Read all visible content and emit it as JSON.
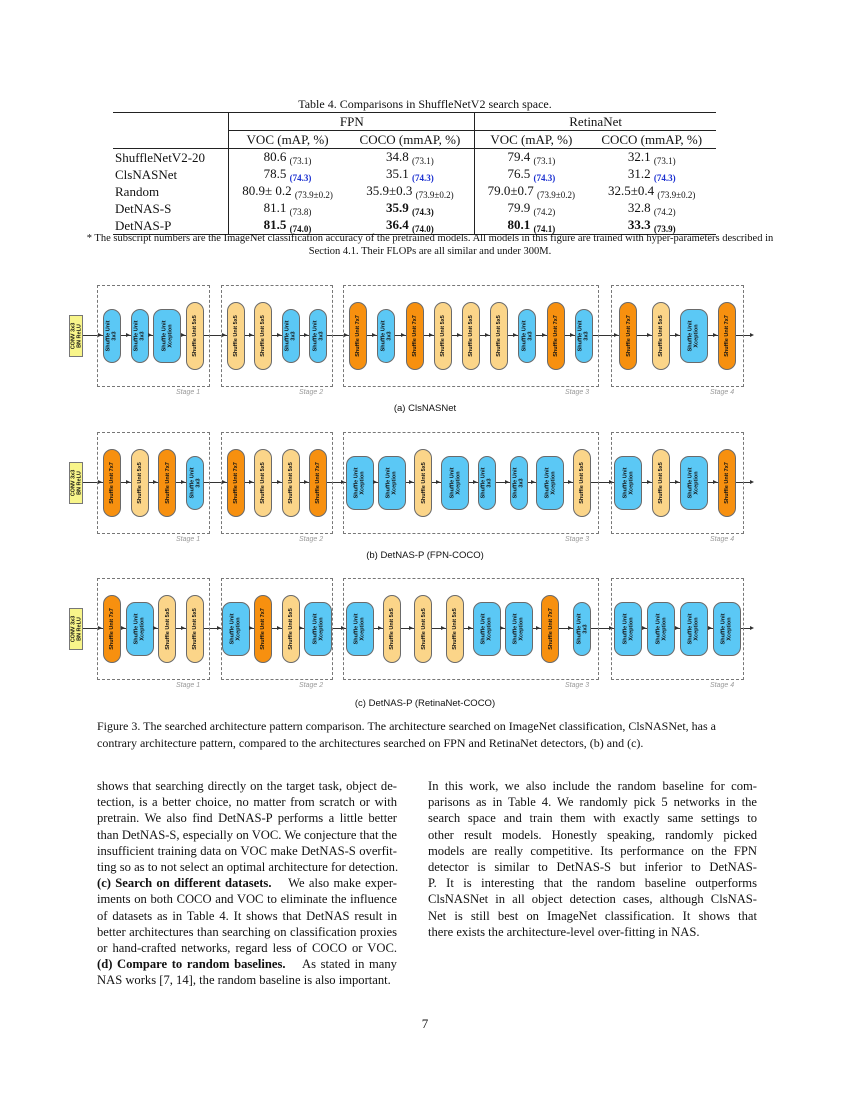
{
  "table": {
    "caption": "Table 4. Comparisons in ShuffleNetV2 search space.",
    "groups": [
      "FPN",
      "RetinaNet"
    ],
    "columns": [
      "VOC (mAP, %)",
      "COCO (mmAP, %)",
      "VOC (mAP, %)",
      "COCO (mmAP, %)"
    ],
    "rows": [
      {
        "name": "ShuffleNetV2-20",
        "cells": [
          {
            "v": "80.6",
            "s": "(73.1)"
          },
          {
            "v": "34.8",
            "s": "(73.1)"
          },
          {
            "v": "79.4",
            "s": "(73.1)"
          },
          {
            "v": "32.1",
            "s": "(73.1)"
          }
        ]
      },
      {
        "name": "ClsNASNet",
        "cells": [
          {
            "v": "78.5",
            "s": "(74.3)",
            "blue": true
          },
          {
            "v": "35.1",
            "s": "(74.3)",
            "blue": true
          },
          {
            "v": "76.5",
            "s": "(74.3)",
            "blue": true
          },
          {
            "v": "31.2",
            "s": "(74.3)",
            "blue": true
          }
        ]
      },
      {
        "name": "Random",
        "cells": [
          {
            "v": "80.9± 0.2",
            "s": "(73.9±0.2)"
          },
          {
            "v": "35.9±0.3",
            "s": "(73.9±0.2)"
          },
          {
            "v": "79.0±0.7",
            "s": "(73.9±0.2)"
          },
          {
            "v": "32.5±0.4",
            "s": "(73.9±0.2)"
          }
        ]
      },
      {
        "name": "DetNAS-S",
        "cells": [
          {
            "v": "81.1",
            "s": "(73.8)"
          },
          {
            "v": "35.9",
            "s": "(74.3)",
            "bold": true
          },
          {
            "v": "79.9",
            "s": "(74.2)"
          },
          {
            "v": "32.8",
            "s": "(74.2)"
          }
        ]
      },
      {
        "name": "DetNAS-P",
        "cells": [
          {
            "v": "81.5",
            "s": "(74.0)",
            "bold": true
          },
          {
            "v": "36.4",
            "s": "(74.0)",
            "bold": true
          },
          {
            "v": "80.1",
            "s": "(74.1)",
            "bold": true
          },
          {
            "v": "33.3",
            "s": "(73.9)",
            "bold": true
          }
        ]
      }
    ],
    "note": "* The subscript numbers are the ImageNet classification accuracy of the pretrained models. All models in this figure are trained with hyper-parameters described in Section 4.1. Their FLOPs are all similar and under 300M."
  },
  "figure": {
    "colors": {
      "3x3": "#5bc8f5",
      "Xception": "#5bc8f5",
      "5x5": "#fbd589",
      "7x7": "#f7900f",
      "conv": "#f8f58a"
    },
    "conv_label": [
      "CONV 3x3",
      "BN ReLU"
    ],
    "stage_labels": [
      "Stage 1",
      "Stage 2",
      "Stage 3",
      "Stage 4"
    ],
    "rows": [
      {
        "caption": "(a) ClsNASNet",
        "stages": [
          [
            "3x3",
            "3x3",
            "Xception",
            "5x5"
          ],
          [
            "5x5",
            "5x5",
            "3x3",
            "3x3"
          ],
          [
            "7x7",
            "3x3",
            "7x7",
            "5x5",
            "5x5",
            "5x5",
            "3x3",
            "7x7",
            "3x3"
          ],
          [
            "7x7",
            "5x5",
            "Xception",
            "7x7"
          ]
        ]
      },
      {
        "caption": "(b) DetNAS-P (FPN-COCO)",
        "stages": [
          [
            "7x7",
            "5x5",
            "7x7",
            "3x3"
          ],
          [
            "7x7",
            "5x5",
            "5x5",
            "7x7"
          ],
          [
            "Xception",
            "Xception",
            "5x5",
            "Xception",
            "3x3",
            "3x3",
            "Xception",
            "5x5"
          ],
          [
            "Xception",
            "5x5",
            "Xception",
            "7x7"
          ]
        ]
      },
      {
        "caption": "(c) DetNAS-P (RetinaNet-COCO)",
        "stages": [
          [
            "7x7",
            "Xception",
            "5x5",
            "5x5"
          ],
          [
            "Xception",
            "7x7",
            "5x5",
            "Xception"
          ],
          [
            "Xception",
            "5x5",
            "5x5",
            "5x5",
            "Xception",
            "Xception",
            "7x7",
            "3x3"
          ],
          [
            "Xception",
            "Xception",
            "Xception",
            "Xception"
          ]
        ]
      }
    ],
    "unit_prefix": "Shuffle Unit",
    "caption": "Figure 3. The searched architecture pattern comparison. The architecture searched on ImageNet classification, ClsNASNet, has a contrary architecture pattern, compared to the architectures searched on FPN and RetinaNet detectors, (b) and (c)."
  },
  "left_column": [
    "shows that searching directly on the target task, object de-",
    "tection, is a better choice, no matter from scratch or with",
    "pretrain.  We also find DetNAS-P performs a little better",
    "than DetNAS-S, especially on VOC. We conjecture that the",
    "insufficient training data on VOC make DetNAS-S overfit-",
    "ting so as to not select an optimal architecture for detection.",
    {
      "bold": "(c) Search on different datasets.",
      "rest": "We also make exper-"
    },
    "iments on both COCO and VOC to eliminate the influence",
    "of datasets as in Table 4.  It shows that DetNAS result in",
    "better architectures than searching on classification proxies",
    "or hand-crafted networks, regard less of COCO or VOC.",
    {
      "bold": "(d) Compare to random baselines.",
      "rest": "As stated in many"
    },
    "NAS works [7, 14], the random baseline is also important."
  ],
  "right_column": [
    "In this work, we also include the random baseline for com-",
    "parisons as in Table 4. We randomly pick 5 networks in the",
    "search space and train them with exactly same settings to",
    "other result models.  Honestly speaking, randomly picked",
    "models are really competitive. Its performance on the FPN",
    "detector is similar to DetNAS-S but inferior to DetNAS-",
    "P. It is interesting that the random baseline outperforms",
    "ClsNASNet in all object detection cases, although ClsNAS-",
    "Net is still best on ImageNet classification.  It shows that",
    "there exists the architecture-level over-fitting in NAS."
  ],
  "page_number": "7"
}
